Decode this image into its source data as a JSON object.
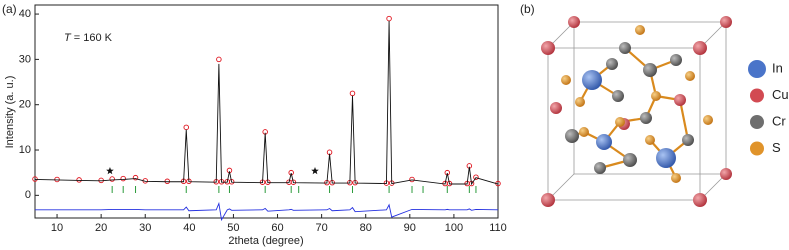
{
  "chart_data": {
    "type": "line",
    "panel_label": "(a)",
    "xlabel": "2theta (degree)",
    "ylabel": "Intensity (a. u.)",
    "annotation_var": "T",
    "annotation": "= 160 K",
    "xlim": [
      5,
      110
    ],
    "ylim": [
      -5,
      42
    ],
    "xticks": [
      10,
      20,
      30,
      40,
      50,
      60,
      70,
      80,
      90,
      100,
      110
    ],
    "yticks": [
      0,
      10,
      20,
      30,
      40
    ],
    "x": [
      5,
      10,
      15,
      20,
      22.5,
      25,
      27.8,
      30,
      35,
      38.7,
      39.3,
      39.9,
      46.1,
      46.7,
      47.3,
      48.6,
      49.1,
      49.6,
      56.6,
      57.2,
      57.8,
      62.6,
      63.1,
      63.6,
      71.2,
      71.8,
      72.4,
      76.4,
      77.0,
      77.6,
      84.7,
      85.3,
      85.9,
      90.5,
      98.0,
      98.5,
      99.0,
      103.0,
      103.5,
      104.0,
      105.0,
      110
    ],
    "series": [
      {
        "style": "markers",
        "color": "#e0141e",
        "values": [
          3.6,
          3.5,
          3.4,
          3.3,
          3.6,
          3.7,
          3.9,
          3.2,
          3.1,
          3.1,
          15,
          3.1,
          3.0,
          30,
          3.0,
          3.0,
          5.5,
          3.0,
          2.9,
          14,
          2.9,
          2.9,
          5,
          2.9,
          2.8,
          9.5,
          2.8,
          2.8,
          22.5,
          2.8,
          2.7,
          39,
          2.7,
          3.5,
          2.6,
          5,
          2.6,
          2.6,
          6.5,
          2.6,
          4,
          2.6
        ]
      },
      {
        "style": "line",
        "color": "#111111",
        "values": [
          3.5,
          3.4,
          3.3,
          3.2,
          3.4,
          3.5,
          3.7,
          3.1,
          3.0,
          3.0,
          14.5,
          3.0,
          2.9,
          29,
          2.9,
          2.9,
          5.3,
          2.9,
          2.8,
          13.8,
          2.8,
          2.8,
          4.9,
          2.8,
          2.7,
          9.2,
          2.7,
          2.7,
          22,
          2.7,
          2.6,
          38.5,
          2.6,
          3.4,
          2.5,
          4.9,
          2.5,
          2.5,
          6.3,
          2.5,
          3.9,
          2.5
        ]
      },
      {
        "style": "line",
        "color": "#2430e0",
        "values": [
          -3.2,
          -3.2,
          -3.2,
          -3.2,
          -3.1,
          -3.1,
          -3.1,
          -3.2,
          -3.2,
          -3.2,
          -2.6,
          -3.4,
          -3.2,
          -1.8,
          -5.4,
          -3.2,
          -3.0,
          -3.3,
          -3.2,
          -2.9,
          -3.5,
          -3.2,
          -3.1,
          -3.3,
          -3.2,
          -2.9,
          -3.4,
          -3.2,
          -2.7,
          -3.6,
          -3.2,
          -2.1,
          -4.8,
          -3.1,
          -3.2,
          -3.1,
          -3.2,
          -3.2,
          -3.0,
          -3.3,
          -3.1,
          -3.2
        ]
      }
    ],
    "bragg_positions": [
      22.5,
      25,
      27.8,
      39.3,
      46.7,
      49.1,
      57.2,
      63.1,
      64.8,
      71.8,
      77.0,
      85.3,
      90.5,
      93.0,
      98.5,
      103.5,
      105.0
    ],
    "bragg_color": "#2a9a3a",
    "impurity_peaks": [
      22.0,
      68.5
    ]
  },
  "structure": {
    "panel_label": "(b)",
    "legend": [
      {
        "label": "In",
        "color": "#4a74c9"
      },
      {
        "label": "Cu",
        "color": "#d24a52"
      },
      {
        "label": "Cr",
        "color": "#6e6e6e"
      },
      {
        "label": "S",
        "color": "#e0932a"
      }
    ]
  }
}
